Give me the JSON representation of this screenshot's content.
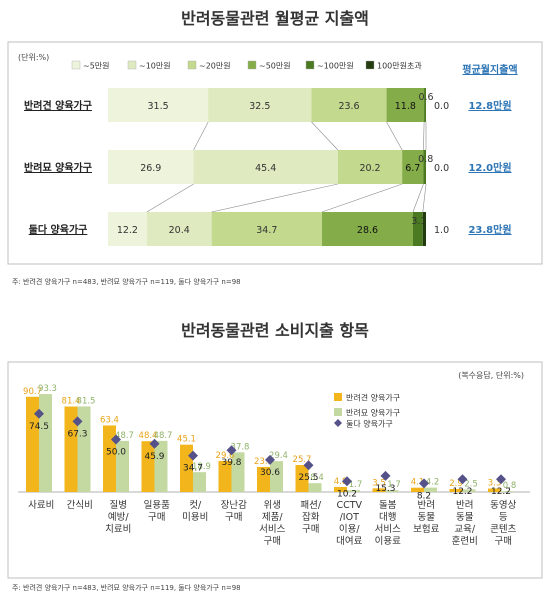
{
  "chart_data": [
    {
      "type": "bar",
      "stacked": true,
      "orientation": "horizontal",
      "title": "반려동물관련 월평균 지출액",
      "unit_note": "(단위:%)",
      "categories": [
        "반려견 양육가구",
        "반려묘 양육가구",
        "둘다 양육가구"
      ],
      "series": [
        {
          "name": "~5만원",
          "color": "#eef3dc",
          "values": [
            31.5,
            26.9,
            12.2
          ]
        },
        {
          "name": "~10만원",
          "color": "#dfeac0",
          "values": [
            32.5,
            45.4,
            20.4
          ]
        },
        {
          "name": "~20만원",
          "color": "#c3d98e",
          "values": [
            23.6,
            20.2,
            34.7
          ]
        },
        {
          "name": "~50만원",
          "color": "#84ad4a",
          "values": [
            11.8,
            6.7,
            28.6
          ]
        },
        {
          "name": "~100만원",
          "color": "#4b7a22",
          "values": [
            0.6,
            0.8,
            3.1
          ]
        },
        {
          "name": "100만원초과",
          "color": "#243d10",
          "values": [
            0.0,
            0.0,
            1.0
          ]
        }
      ],
      "avg_header": "평균월지출액",
      "avg_values": [
        "12.8만원",
        "12.0만원",
        "23.8만원"
      ],
      "note": "주: 반려견 양육가구 n=483, 반려묘 양육가구 n=119, 둘다 양육가구 n=98"
    },
    {
      "type": "bar",
      "orientation": "vertical",
      "title": "반려동물관련 소비지출 항목",
      "unit_note": "(복수응답, 단위:%)",
      "categories": [
        [
          "사료비"
        ],
        [
          "간식비"
        ],
        [
          "질병",
          "예방/",
          "치료비"
        ],
        [
          "일용품",
          "구매"
        ],
        [
          "컷/",
          "미용비"
        ],
        [
          "장난감",
          "구매"
        ],
        [
          "위생",
          "제품/",
          "서비스",
          "구매"
        ],
        [
          "패션/",
          "잡화",
          "구매"
        ],
        [
          "CCTV",
          "/IOT",
          "이용/",
          "대여료"
        ],
        [
          "돌봄",
          "대행",
          "서비스",
          "이용료"
        ],
        [
          "반려",
          "동물",
          "보험료"
        ],
        [
          "반려",
          "동물",
          "교육/",
          "훈련비"
        ],
        [
          "동영상",
          "등",
          "콘텐츠",
          "구매"
        ]
      ],
      "series": [
        {
          "name": "반려견 양육가구",
          "color": "#f2b61c",
          "values": [
            90.7,
            81.4,
            63.4,
            48.4,
            45.1,
            29.6,
            23.9,
            25.7,
            4.8,
            3.5,
            4.1,
            2.9,
            3.3
          ]
        },
        {
          "name": "반려묘 양육가구",
          "color": "#c4d9a2",
          "values": [
            93.3,
            81.5,
            48.7,
            48.7,
            18.9,
            37.8,
            29.4,
            8.4,
            1.7,
            1.7,
            4.2,
            2.5,
            0.8
          ]
        },
        {
          "name": "둘다 양육가구",
          "color": "#55528a",
          "marker": "diamond",
          "values": [
            74.5,
            67.3,
            50.0,
            45.9,
            34.7,
            39.8,
            30.6,
            25.5,
            10.2,
            15.3,
            8.2,
            12.2,
            12.2
          ]
        }
      ],
      "ylim": [
        0,
        100
      ],
      "note": "주: 반려견 양육가구 n=483, 반려묘 양육가구 n=119, 둘다 양육가구 n=98"
    }
  ]
}
